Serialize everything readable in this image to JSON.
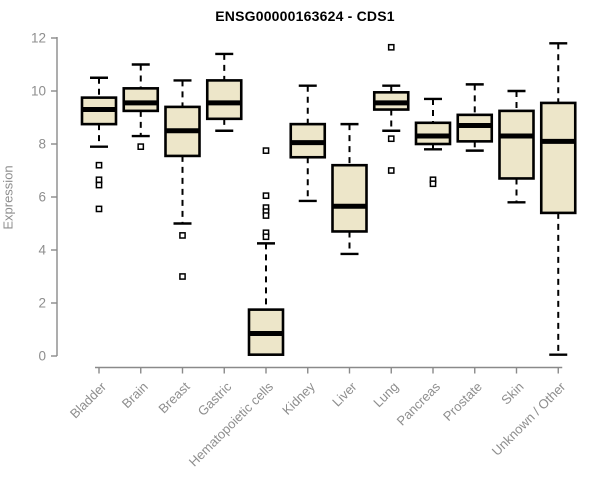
{
  "chart_data": {
    "type": "boxplot",
    "title": "ENSG00000163624 - CDS1",
    "ylabel": "Expression",
    "xlabel": "",
    "ylim": [
      0,
      12
    ],
    "yticks": [
      0,
      2,
      4,
      6,
      8,
      10,
      12
    ],
    "grid": false,
    "legend": "none",
    "categories": [
      "Bladder",
      "Brain",
      "Breast",
      "Gastric",
      "Hematopoietic cells",
      "Kidney",
      "Liver",
      "Lung",
      "Pancreas",
      "Prostate",
      "Skin",
      "Unknown / Other"
    ],
    "series": [
      {
        "name": "Bladder",
        "whisker_low": 7.9,
        "q1": 8.75,
        "median": 9.3,
        "q3": 9.75,
        "whisker_high": 10.5,
        "outliers": [
          7.2,
          6.65,
          6.45,
          5.55
        ]
      },
      {
        "name": "Brain",
        "whisker_low": 8.3,
        "q1": 9.25,
        "median": 9.55,
        "q3": 10.1,
        "whisker_high": 11.0,
        "outliers": [
          7.9
        ]
      },
      {
        "name": "Breast",
        "whisker_low": 5.0,
        "q1": 7.55,
        "median": 8.5,
        "q3": 9.4,
        "whisker_high": 10.4,
        "outliers": [
          4.55,
          3.0
        ]
      },
      {
        "name": "Gastric",
        "whisker_low": 8.5,
        "q1": 8.95,
        "median": 9.55,
        "q3": 10.4,
        "whisker_high": 11.4,
        "outliers": []
      },
      {
        "name": "Hematopoietic cells",
        "whisker_low": 0.05,
        "q1": 0.05,
        "median": 0.85,
        "q3": 1.75,
        "whisker_high": 4.25,
        "outliers": [
          7.75,
          6.05,
          5.6,
          5.45,
          5.3,
          4.65,
          4.5
        ]
      },
      {
        "name": "Kidney",
        "whisker_low": 5.85,
        "q1": 7.5,
        "median": 8.05,
        "q3": 8.75,
        "whisker_high": 10.2,
        "outliers": []
      },
      {
        "name": "Liver",
        "whisker_low": 3.85,
        "q1": 4.7,
        "median": 5.65,
        "q3": 7.2,
        "whisker_high": 8.75,
        "outliers": []
      },
      {
        "name": "Lung",
        "whisker_low": 8.5,
        "q1": 9.3,
        "median": 9.55,
        "q3": 9.95,
        "whisker_high": 10.2,
        "outliers": [
          11.65,
          8.2,
          7.0
        ]
      },
      {
        "name": "Pancreas",
        "whisker_low": 7.8,
        "q1": 8.0,
        "median": 8.3,
        "q3": 8.8,
        "whisker_high": 9.7,
        "outliers": [
          6.65,
          6.5
        ]
      },
      {
        "name": "Prostate",
        "whisker_low": 7.75,
        "q1": 8.1,
        "median": 8.7,
        "q3": 9.1,
        "whisker_high": 10.25,
        "outliers": []
      },
      {
        "name": "Skin",
        "whisker_low": 5.8,
        "q1": 6.7,
        "median": 8.3,
        "q3": 9.25,
        "whisker_high": 10.0,
        "outliers": []
      },
      {
        "name": "Unknown / Other",
        "whisker_low": 0.05,
        "q1": 5.4,
        "median": 8.1,
        "q3": 9.55,
        "whisker_high": 11.8,
        "outliers": []
      }
    ],
    "colors": {
      "box_fill": "#EDE6C9",
      "box_border": "#000000",
      "median": "#000000",
      "whisker": "#000000",
      "axis": "#8a8a8a",
      "tick_label": "#8e8e8e",
      "title": "#000000",
      "background": "#ffffff"
    }
  }
}
